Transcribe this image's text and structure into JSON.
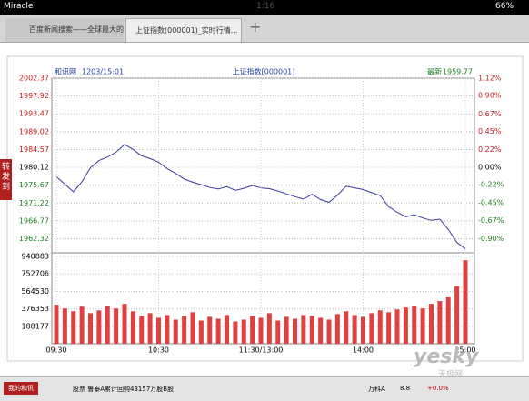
{
  "status_bar": {
    "carrier": "Miracle",
    "time": "1:16",
    "battery": "66%"
  },
  "tabs": [
    "百度新闻搜索——全球最大的...",
    "上证指数(000001)_实时行情..."
  ],
  "side_tab": "转发到",
  "bottom_bar": {
    "button": "我的和讯",
    "news": "股票 鲁泰A累计回购43157万股B股",
    "stock": "万科A",
    "price": "8.8",
    "change": "+0.0%"
  },
  "watermark": {
    "brand": "yesky",
    "name": "天极网"
  },
  "chart_data": [
    {
      "type": "line",
      "source": "和讯网",
      "timestamp": "1203/15:01",
      "title": "上证指数[000001]",
      "latest_label": "最新",
      "latest": 1959.77,
      "x": [
        0,
        5,
        10,
        15,
        20,
        25,
        30,
        35,
        40,
        45,
        50,
        55,
        60,
        65,
        70,
        75,
        80,
        85,
        90,
        95,
        100,
        105,
        110,
        115,
        120,
        125,
        130,
        135,
        140,
        145,
        150,
        155,
        160,
        165,
        170,
        175,
        180,
        185,
        190,
        195,
        200,
        205,
        210,
        215,
        220,
        225,
        230,
        235,
        240
      ],
      "xlim": [
        0,
        240
      ],
      "series": [
        {
          "color": "#3a3aa0",
          "values": [
            1977.8,
            1975.9,
            1974.0,
            1976.5,
            1980.0,
            1981.8,
            1982.7,
            1983.9,
            1985.8,
            1984.6,
            1983.0,
            1982.3,
            1981.4,
            1979.8,
            1978.6,
            1977.2,
            1976.4,
            1975.8,
            1975.1,
            1974.7,
            1975.3,
            1974.4,
            1974.9,
            1975.6,
            1975.0,
            1974.8,
            1974.2,
            1973.5,
            1972.8,
            1972.2,
            1973.4,
            1972.1,
            1971.4,
            1973.2,
            1975.4,
            1975.0,
            1974.6,
            1973.8,
            1973.1,
            1970.3,
            1968.9,
            1967.8,
            1968.3,
            1967.5,
            1966.9,
            1967.2,
            1964.6,
            1961.4,
            1959.77
          ]
        }
      ],
      "ylim": [
        1958.8,
        2002.37
      ],
      "yticks": [
        2002.37,
        1997.92,
        1993.47,
        1989.02,
        1984.57,
        1980.12,
        1975.67,
        1971.22,
        1966.77,
        1962.32
      ],
      "y2lim": [
        -1.077,
        1.12
      ],
      "y2ticks": [
        {
          "value": 1.12,
          "label": "1.12%"
        },
        {
          "value": 0.9,
          "label": "0.90%"
        },
        {
          "value": 0.67,
          "label": "0.67%"
        },
        {
          "value": 0.45,
          "label": "0.45%"
        },
        {
          "value": 0.22,
          "label": "0.22%"
        },
        {
          "value": 0,
          "label": "0.00%"
        },
        {
          "value": -0.22,
          "label": "-0.22%"
        },
        {
          "value": -0.45,
          "label": "-0.45%"
        },
        {
          "value": -0.67,
          "label": "-0.67%"
        },
        {
          "value": -0.9,
          "label": "-0.90%"
        }
      ],
      "grid": true
    },
    {
      "type": "bar",
      "color": "#e04040",
      "x": [
        0,
        5,
        10,
        15,
        20,
        25,
        30,
        35,
        40,
        45,
        50,
        55,
        60,
        65,
        70,
        75,
        80,
        85,
        90,
        95,
        100,
        105,
        110,
        115,
        120,
        125,
        130,
        135,
        140,
        145,
        150,
        155,
        160,
        165,
        170,
        175,
        180,
        185,
        190,
        195,
        200,
        205,
        210,
        215,
        220,
        225,
        230,
        235,
        240
      ],
      "xlim": [
        0,
        240
      ],
      "values": [
        420000,
        380000,
        350000,
        400000,
        330000,
        360000,
        410000,
        380000,
        430000,
        350000,
        300000,
        330000,
        280000,
        310000,
        260000,
        300000,
        340000,
        250000,
        290000,
        270000,
        310000,
        240000,
        260000,
        300000,
        280000,
        330000,
        250000,
        290000,
        270000,
        310000,
        300000,
        280000,
        260000,
        320000,
        350000,
        310000,
        290000,
        330000,
        360000,
        340000,
        370000,
        390000,
        410000,
        380000,
        430000,
        460000,
        500000,
        620000,
        900000
      ],
      "ylim": [
        0,
        940883
      ],
      "yticks": [
        940883,
        752706,
        564530,
        376353,
        188177
      ],
      "xticks": [
        {
          "value": 0,
          "label": "09:30"
        },
        {
          "value": 60,
          "label": "10:30"
        },
        {
          "value": 120,
          "label": "11:30/13:00"
        },
        {
          "value": 180,
          "label": "14:00"
        },
        {
          "value": 240,
          "label": "15:00"
        }
      ],
      "grid": true
    }
  ]
}
